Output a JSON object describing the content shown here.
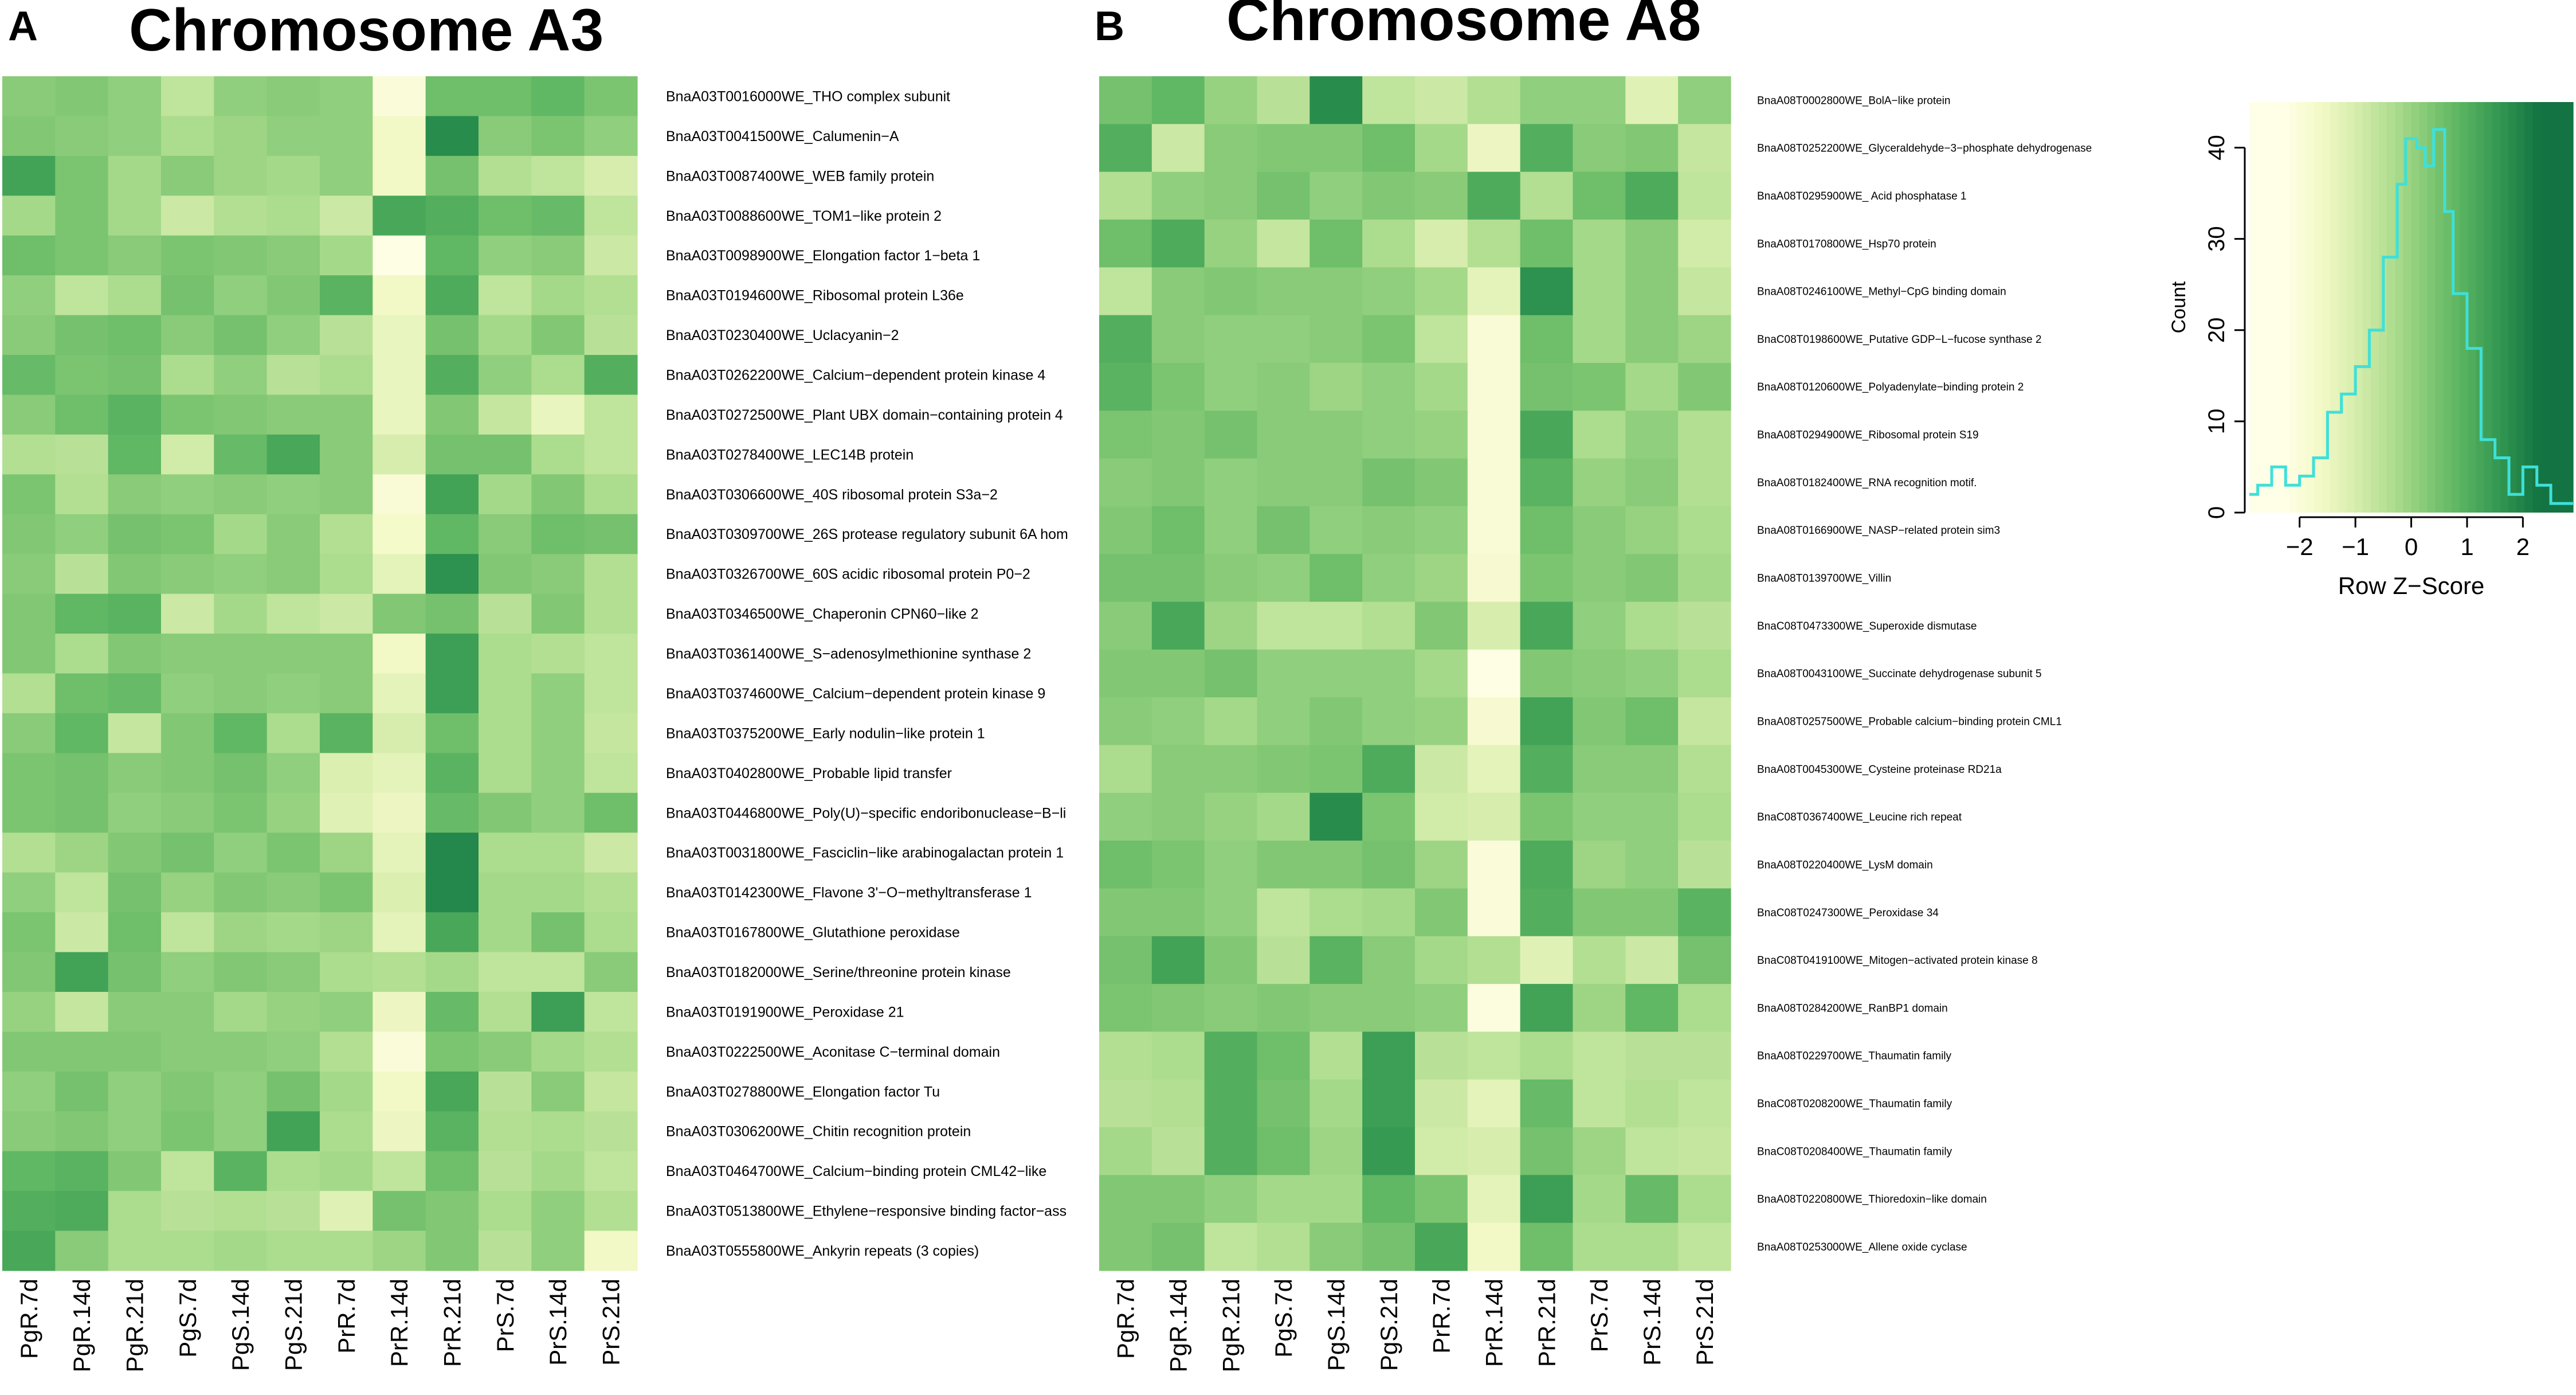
{
  "panels": [
    {
      "letter": "A",
      "title": "Chromosome A3"
    },
    {
      "letter": "B",
      "title": "Chromosome A8"
    }
  ],
  "chart_data": [
    {
      "type": "heatmap",
      "title": "Chromosome A3",
      "panel": "A",
      "color_scale": [
        "#ffffe8",
        "#f4f9c8",
        "#d6edac",
        "#aedd8f",
        "#80c773",
        "#54b05e",
        "#2f9450",
        "#137342"
      ],
      "columns": [
        "PgR.7d",
        "PgR.14d",
        "PgR.21d",
        "PgS.7d",
        "PgS.14d",
        "PgS.21d",
        "PrR.7d",
        "PrR.14d",
        "PrR.21d",
        "PrS.7d",
        "PrS.14d",
        "PrS.21d"
      ],
      "rows": [
        "BnaA03T0016000WE_THO complex subunit",
        "BnaA03T0041500WE_Calumenin−A",
        "BnaA03T0087400WE_WEB family protein",
        "BnaA03T0088600WE_TOM1−like protein 2",
        "BnaA03T0098900WE_Elongation factor 1−beta 1",
        "BnaA03T0194600WE_Ribosomal protein L36e",
        "BnaA03T0230400WE_Uclacyanin−2",
        "BnaA03T0262200WE_Calcium−dependent protein kinase 4",
        "BnaA03T0272500WE_Plant UBX domain−containing protein 4",
        "BnaA03T0278400WE_LEC14B protein",
        "BnaA03T0306600WE_40S ribosomal protein S3a−2",
        "BnaA03T0309700WE_26S protease regulatory subunit 6A hom",
        "BnaA03T0326700WE_60S acidic ribosomal protein P0−2",
        "BnaA03T0346500WE_Chaperonin CPN60−like 2",
        "BnaA03T0361400WE_S−adenosylmethionine synthase 2",
        "BnaA03T0374600WE_Calcium−dependent protein kinase 9",
        "BnaA03T0375200WE_Early nodulin−like protein 1",
        "BnaA03T0402800WE_Probable lipid transfer",
        "BnaA03T0446800WE_Poly(U)−specific endoribonuclease−B−li",
        "BnaA03T0031800WE_Fasciclin−like arabinogalactan protein 1",
        "BnaA03T0142300WE_Flavone 3'−O−methyltransferase 1",
        "BnaA03T0167800WE_Glutathione peroxidase",
        "BnaA03T0182000WE_Serine/threonine protein kinase",
        "BnaA03T0191900WE_Peroxidase 21",
        "BnaA03T0222500WE_Aconitase C−terminal domain",
        "BnaA03T0278800WE_Elongation factor Tu",
        "BnaA03T0306200WE_Chitin recognition protein",
        "BnaA03T0464700WE_Calcium−binding protein CML42−like",
        "BnaA03T0513800WE_Ethylene−responsive binding factor−ass",
        "BnaA03T0555800WE_Ankyrin repeats (3 copies)"
      ],
      "values": [
        [
          0.2,
          0.3,
          0.1,
          -0.6,
          0.1,
          0.2,
          0.1,
          -2.0,
          0.6,
          0.6,
          0.8,
          0.4
        ],
        [
          0.3,
          0.2,
          0.1,
          -0.3,
          -0.1,
          0.1,
          0.1,
          -1.6,
          1.8,
          0.2,
          0.4,
          0.1
        ],
        [
          1.3,
          0.4,
          -0.2,
          0.2,
          -0.1,
          -0.2,
          0.1,
          -1.6,
          0.5,
          -0.4,
          -0.6,
          -1.0
        ],
        [
          -0.2,
          0.4,
          -0.2,
          -0.8,
          -0.4,
          -0.3,
          -0.8,
          1.2,
          1.0,
          0.6,
          0.7,
          -0.6
        ],
        [
          0.6,
          0.4,
          0.2,
          0.4,
          0.3,
          0.2,
          -0.2,
          -2.2,
          0.8,
          0.1,
          0.2,
          -0.8
        ],
        [
          0.1,
          -0.6,
          -0.3,
          0.5,
          0.1,
          0.3,
          0.9,
          -1.6,
          1.1,
          -0.6,
          -0.2,
          -0.4
        ],
        [
          0.2,
          0.5,
          0.6,
          0.2,
          0.5,
          0.1,
          -0.5,
          -1.4,
          0.5,
          -0.2,
          0.3,
          -0.5
        ],
        [
          0.7,
          0.4,
          0.5,
          -0.3,
          0.1,
          -0.5,
          -0.3,
          -1.4,
          1.0,
          0.1,
          -0.3,
          1.0
        ],
        [
          0.2,
          0.6,
          0.9,
          0.4,
          0.3,
          0.2,
          0.2,
          -1.4,
          0.3,
          -0.7,
          -1.4,
          -0.6
        ],
        [
          -0.4,
          -0.5,
          0.8,
          -0.9,
          0.7,
          1.2,
          0.2,
          -1.0,
          0.5,
          0.5,
          -0.3,
          -0.6
        ],
        [
          0.4,
          -0.4,
          0.2,
          0.1,
          0.2,
          0.1,
          0.2,
          -1.9,
          1.3,
          -0.2,
          0.3,
          -0.3
        ],
        [
          0.3,
          0.1,
          0.5,
          0.4,
          -0.2,
          0.2,
          -0.4,
          -1.7,
          0.8,
          0.2,
          0.6,
          0.5
        ],
        [
          0.2,
          -0.5,
          0.3,
          0.2,
          0.1,
          0.2,
          -0.3,
          -1.3,
          1.7,
          0.3,
          0.2,
          -0.4
        ],
        [
          0.3,
          0.8,
          0.9,
          -0.8,
          -0.2,
          -0.6,
          -0.8,
          0.3,
          0.5,
          -0.5,
          0.3,
          -0.4
        ],
        [
          0.3,
          -0.3,
          0.3,
          0.2,
          0.2,
          0.2,
          0.2,
          -1.6,
          1.4,
          -0.3,
          -0.4,
          -0.6
        ],
        [
          -0.4,
          0.6,
          0.7,
          0.1,
          0.2,
          0.1,
          0.2,
          -1.3,
          1.4,
          -0.3,
          0.1,
          -0.6
        ],
        [
          0.2,
          0.8,
          -0.7,
          0.3,
          0.8,
          -0.3,
          0.9,
          -1.0,
          0.6,
          -0.3,
          0.1,
          -0.7
        ],
        [
          0.4,
          0.5,
          0.2,
          0.3,
          0.5,
          0.1,
          -1.1,
          -1.3,
          0.9,
          -0.3,
          0.1,
          -0.6
        ],
        [
          0.4,
          0.5,
          0.1,
          0.2,
          0.4,
          0.0,
          -1.2,
          -1.5,
          0.7,
          0.3,
          0.1,
          0.6
        ],
        [
          -0.4,
          -0.1,
          0.3,
          0.5,
          0.1,
          0.4,
          -0.1,
          -1.3,
          1.9,
          -0.3,
          -0.3,
          -0.8
        ],
        [
          0.1,
          -0.6,
          0.5,
          0.0,
          0.3,
          0.2,
          0.4,
          -1.1,
          1.9,
          -0.2,
          -0.2,
          -0.4
        ],
        [
          0.4,
          -0.8,
          0.6,
          -0.6,
          -0.1,
          -0.2,
          -0.1,
          -1.3,
          1.2,
          -0.2,
          0.5,
          -0.3
        ],
        [
          0.3,
          1.3,
          0.5,
          0.1,
          0.3,
          0.2,
          -0.3,
          -0.4,
          -0.2,
          -0.6,
          -0.6,
          0.2
        ],
        [
          0.0,
          -0.7,
          0.2,
          0.2,
          -0.2,
          0.0,
          0.1,
          -1.5,
          0.7,
          -0.4,
          1.4,
          -0.6
        ],
        [
          0.3,
          0.3,
          0.3,
          0.2,
          0.2,
          0.1,
          -0.4,
          -2.0,
          0.4,
          0.2,
          -0.2,
          -0.4
        ],
        [
          0.1,
          0.5,
          0.1,
          0.3,
          0.1,
          0.5,
          -0.2,
          -1.6,
          1.2,
          -0.5,
          0.2,
          -0.7
        ],
        [
          0.2,
          0.3,
          0.1,
          0.4,
          0.1,
          1.3,
          -0.3,
          -1.5,
          0.9,
          -0.4,
          -0.3,
          -0.5
        ],
        [
          0.8,
          0.9,
          0.3,
          -0.6,
          0.9,
          -0.3,
          -0.2,
          -0.6,
          0.6,
          -0.5,
          -0.2,
          -0.6
        ],
        [
          1.0,
          1.1,
          -0.3,
          -0.5,
          -0.4,
          -0.5,
          -1.2,
          0.5,
          0.3,
          -0.3,
          0.1,
          -0.4
        ],
        [
          1.2,
          0.2,
          -0.3,
          -0.3,
          -0.2,
          -0.3,
          -0.3,
          -0.1,
          0.3,
          -0.5,
          0.1,
          -1.6
        ]
      ]
    },
    {
      "type": "heatmap",
      "title": "Chromosome A8",
      "panel": "B",
      "columns": [
        "PgR.7d",
        "PgR.14d",
        "PgR.21d",
        "PgS.7d",
        "PgS.14d",
        "PgS.21d",
        "PrR.7d",
        "PrR.14d",
        "PrR.21d",
        "PrS.7d",
        "PrS.14d",
        "PrS.21d"
      ],
      "rows": [
        "BnaA08T0002800WE_BolA−like protein",
        "BnaA08T0252200WE_Glyceraldehyde−3−phosphate dehydrogenase",
        "BnaA08T0295900WE_ Acid phosphatase 1",
        "BnaA08T0170800WE_Hsp70 protein",
        "BnaA08T0246100WE_Methyl−CpG binding domain",
        "BnaC08T0198600WE_Putative GDP−L−fucose synthase 2",
        "BnaA08T0120600WE_Polyadenylate−binding protein 2",
        "BnaA08T0294900WE_Ribosomal protein S19",
        "BnaA08T0182400WE_RNA recognition motif.",
        "BnaA08T0166900WE_NASP−related protein sim3",
        "BnaA08T0139700WE_Villin",
        "BnaC08T0473300WE_Superoxide dismutase",
        "BnaA08T0043100WE_Succinate dehydrogenase subunit 5",
        "BnaA08T0257500WE_Probable calcium−binding protein CML1",
        "BnaA08T0045300WE_Cysteine proteinase RD21a",
        "BnaC08T0367400WE_Leucine rich repeat",
        "BnaA08T0220400WE_LysM domain",
        "BnaC08T0247300WE_Peroxidase 34",
        "BnaC08T0419100WE_Mitogen−activated protein kinase 8",
        "BnaA08T0284200WE_RanBP1 domain",
        "BnaA08T0229700WE_Thaumatin family",
        "BnaC08T0208200WE_Thaumatin family",
        "BnaC08T0208400WE_Thaumatin family",
        "BnaA08T0220800WE_Thioredoxin−like domain",
        "BnaA08T0253000WE_Allene oxide cyclase"
      ],
      "values": [
        [
          0.5,
          0.8,
          0.0,
          -0.5,
          1.8,
          -0.6,
          -0.8,
          -0.4,
          0.1,
          0.1,
          -1.2,
          0.1
        ],
        [
          1.0,
          -0.8,
          0.2,
          0.3,
          0.3,
          0.6,
          -0.2,
          -1.5,
          1.0,
          0.2,
          0.3,
          -0.7
        ],
        [
          -0.4,
          0.1,
          0.2,
          0.5,
          0.1,
          0.3,
          0.2,
          1.1,
          -0.4,
          0.6,
          1.1,
          -0.6
        ],
        [
          0.6,
          1.1,
          0.0,
          -0.7,
          0.6,
          -0.3,
          -1.0,
          -0.4,
          0.6,
          -0.2,
          0.2,
          -0.9
        ],
        [
          -0.6,
          0.2,
          0.3,
          0.2,
          0.2,
          0.1,
          -0.2,
          -1.3,
          1.7,
          -0.2,
          0.2,
          -0.7
        ],
        [
          1.0,
          0.2,
          0.1,
          0.1,
          0.2,
          0.4,
          -0.6,
          -1.9,
          0.6,
          -0.2,
          0.2,
          -0.1
        ],
        [
          0.9,
          0.4,
          0.1,
          0.2,
          -0.1,
          0.1,
          -0.2,
          -1.9,
          0.5,
          0.4,
          -0.2,
          0.3
        ],
        [
          0.4,
          0.3,
          0.5,
          0.2,
          0.2,
          0.1,
          0.0,
          -1.9,
          1.2,
          -0.3,
          0.1,
          -0.4
        ],
        [
          0.2,
          0.3,
          0.1,
          0.2,
          0.2,
          0.5,
          0.3,
          -1.9,
          0.9,
          0.0,
          0.2,
          -0.4
        ],
        [
          0.3,
          0.6,
          0.1,
          0.5,
          0.1,
          0.2,
          0.1,
          -1.9,
          0.6,
          0.2,
          0.0,
          -0.3
        ],
        [
          0.5,
          0.5,
          0.2,
          0.1,
          0.6,
          0.1,
          -0.1,
          -1.8,
          0.4,
          0.2,
          0.3,
          -0.2
        ],
        [
          0.2,
          1.2,
          -0.1,
          -0.6,
          -0.6,
          -0.4,
          0.3,
          -1.0,
          1.2,
          0.1,
          -0.3,
          -0.5
        ],
        [
          0.3,
          0.3,
          0.5,
          0.1,
          0.1,
          0.1,
          -0.2,
          -2.2,
          0.3,
          0.2,
          0.1,
          -0.3
        ],
        [
          0.2,
          0.1,
          -0.2,
          0.1,
          0.3,
          0.1,
          0.0,
          -1.8,
          1.3,
          0.3,
          0.6,
          -0.7
        ],
        [
          -0.3,
          0.2,
          0.2,
          0.3,
          0.4,
          1.1,
          -0.8,
          -1.3,
          1.0,
          0.2,
          0.2,
          -0.4
        ],
        [
          0.1,
          0.2,
          0.0,
          -0.2,
          1.8,
          0.4,
          -0.9,
          -1.0,
          0.4,
          0.1,
          0.1,
          -0.3
        ],
        [
          0.6,
          0.4,
          0.1,
          0.3,
          0.3,
          0.5,
          -0.1,
          -2.0,
          1.1,
          -0.1,
          0.1,
          -0.5
        ],
        [
          0.3,
          0.3,
          0.1,
          -0.6,
          -0.3,
          -0.2,
          0.3,
          -2.0,
          1.0,
          0.3,
          0.3,
          0.9
        ],
        [
          0.5,
          1.3,
          0.3,
          -0.5,
          0.9,
          0.2,
          -0.2,
          -0.4,
          -1.2,
          -0.4,
          -0.8,
          0.5
        ],
        [
          0.4,
          0.3,
          0.2,
          0.3,
          0.2,
          0.2,
          0.1,
          -2.1,
          1.3,
          -0.1,
          0.8,
          -0.3
        ],
        [
          -0.4,
          -0.3,
          1.0,
          0.6,
          -0.4,
          1.4,
          -0.5,
          -0.6,
          -0.3,
          -0.6,
          -0.5,
          -0.5
        ],
        [
          -0.5,
          -0.4,
          1.0,
          0.5,
          -0.2,
          1.4,
          -0.8,
          -1.3,
          0.7,
          -0.6,
          -0.4,
          -0.6
        ],
        [
          -0.2,
          -0.5,
          1.0,
          0.6,
          -0.1,
          1.5,
          -0.9,
          -1.0,
          0.5,
          -0.1,
          -0.6,
          -0.7
        ],
        [
          0.3,
          0.3,
          0.1,
          -0.2,
          -0.2,
          0.8,
          0.4,
          -1.3,
          1.4,
          -0.2,
          0.7,
          -0.3
        ],
        [
          0.3,
          0.5,
          -0.6,
          -0.4,
          0.2,
          0.5,
          1.2,
          -1.6,
          0.6,
          -0.3,
          -0.3,
          -0.6
        ]
      ]
    },
    {
      "type": "step-histogram",
      "role": "color key",
      "xlabel": "Row Z−Score",
      "ylabel": "Count",
      "xlim": [
        -2.9,
        2.9
      ],
      "ylim": [
        0,
        45
      ],
      "xticks": [
        "−2",
        "−1",
        "0",
        "1",
        "2"
      ],
      "xtick_values": [
        -2,
        -1,
        0,
        1,
        2
      ],
      "yticks": [
        "0",
        "10",
        "20",
        "30",
        "40"
      ],
      "ytick_values": [
        0,
        10,
        20,
        30,
        40
      ],
      "bin_edges": [
        -2.9,
        -2.75,
        -2.5,
        -2.25,
        -2.0,
        -1.75,
        -1.5,
        -1.25,
        -1.0,
        -0.75,
        -0.5,
        -0.25,
        -0.1,
        0.1,
        0.25,
        0.4,
        0.6,
        0.75,
        1.0,
        1.25,
        1.5,
        1.75,
        2.0,
        2.25,
        2.5,
        2.9
      ],
      "counts": [
        2,
        3,
        5,
        3,
        4,
        6,
        11,
        13,
        16,
        20,
        28,
        36,
        41,
        40,
        38,
        42,
        33,
        24,
        18,
        8,
        6,
        2,
        5,
        3,
        1
      ],
      "line_color": "#3fe0d8"
    }
  ]
}
